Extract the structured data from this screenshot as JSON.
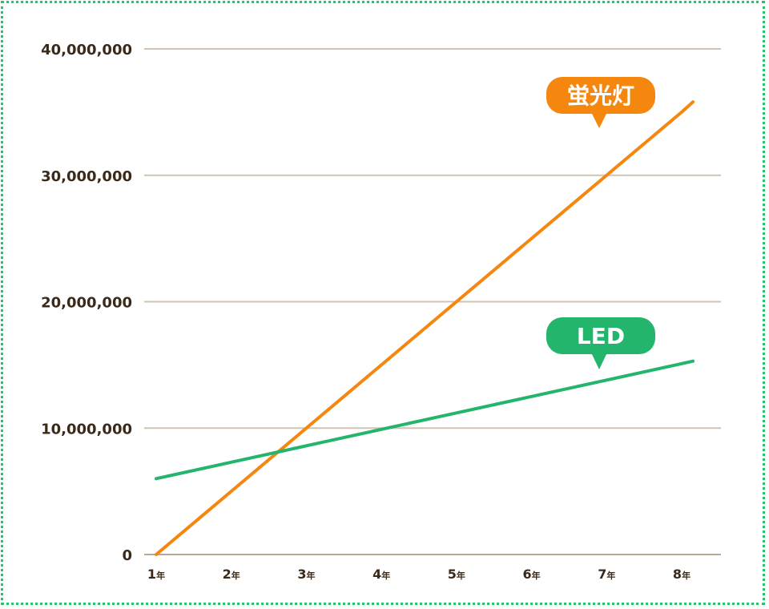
{
  "chart_data": {
    "type": "line",
    "x": [
      1,
      2,
      3,
      4,
      5,
      6,
      7,
      8
    ],
    "x_tick_labels": [
      {
        "num": "1",
        "unit": "年"
      },
      {
        "num": "2",
        "unit": "年"
      },
      {
        "num": "3",
        "unit": "年"
      },
      {
        "num": "4",
        "unit": "年"
      },
      {
        "num": "5",
        "unit": "年"
      },
      {
        "num": "6",
        "unit": "年"
      },
      {
        "num": "7",
        "unit": "年"
      },
      {
        "num": "8",
        "unit": "年"
      }
    ],
    "y_ticks": [
      0,
      10000000,
      20000000,
      30000000,
      40000000
    ],
    "y_tick_labels": [
      "0",
      "10,000,000",
      "20,000,000",
      "30,000,000",
      "40,000,000"
    ],
    "ylim": [
      0,
      40000000
    ],
    "grid": true,
    "series": [
      {
        "name": "蛍光灯",
        "color": "#f5870f",
        "values": [
          0,
          5000000,
          10000000,
          15000000,
          20000000,
          25000000,
          30000000,
          35000000
        ],
        "end_x": 8.15,
        "end_value": 35800000
      },
      {
        "name": "LED",
        "color": "#22b56b",
        "values": [
          6000000,
          7300000,
          8600000,
          9900000,
          11200000,
          12500000,
          13800000,
          15100000
        ],
        "end_x": 8.15,
        "end_value": 15300000
      }
    ],
    "colors": {
      "grid": "#cfc3b2",
      "axis": "#b7a892",
      "text": "#3b2a1a",
      "border": "#2fbf6f"
    }
  }
}
